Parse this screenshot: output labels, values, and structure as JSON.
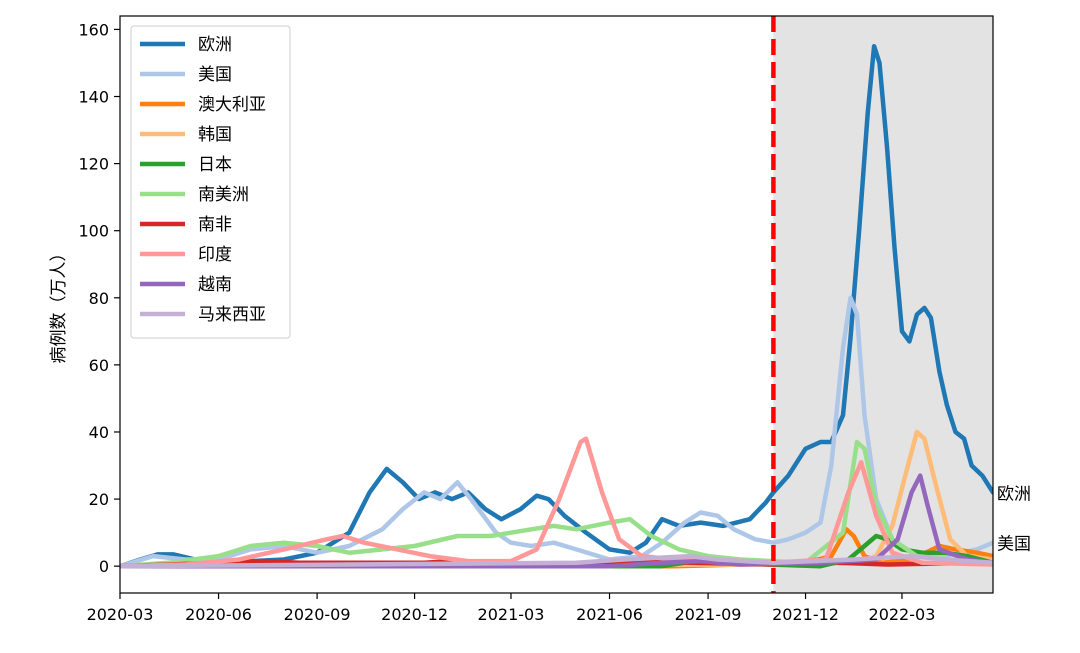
{
  "chart_data": {
    "type": "line",
    "title": "",
    "xlabel": "",
    "ylabel": "病例数（万人）",
    "ylim": [
      -8,
      164
    ],
    "xlim": [
      "2020-03-01",
      "2022-05-25"
    ],
    "y_ticks": [
      0,
      20,
      40,
      60,
      80,
      100,
      120,
      140,
      160
    ],
    "x_ticks": [
      {
        "date": "2020-03-01",
        "label": "2020-03"
      },
      {
        "date": "2020-06-01",
        "label": "2020-06"
      },
      {
        "date": "2020-09-01",
        "label": "2020-09"
      },
      {
        "date": "2020-12-01",
        "label": "2020-12"
      },
      {
        "date": "2021-03-01",
        "label": "2021-03"
      },
      {
        "date": "2021-06-01",
        "label": "2021-06"
      },
      {
        "date": "2021-09-01",
        "label": "2021-09"
      },
      {
        "date": "2021-12-01",
        "label": "2021-12"
      },
      {
        "date": "2022-03-01",
        "label": "2022-03"
      }
    ],
    "grid": false,
    "legend_position": "top-left",
    "vertical_marker": {
      "date": "2021-11-01",
      "color": "#ff0000",
      "style": "dashed"
    },
    "shaded_region": {
      "start": "2021-11-01",
      "end": "2022-05-25",
      "color": "#e3e3e3"
    },
    "end_labels": [
      {
        "series": "欧洲",
        "text": "欧洲",
        "y": 22
      },
      {
        "series": "美国",
        "text": "美国",
        "y": 7
      }
    ],
    "series": [
      {
        "name": "欧洲",
        "color": "#1f77b4",
        "points": [
          [
            "2020-03-01",
            0
          ],
          [
            "2020-03-20",
            2
          ],
          [
            "2020-04-05",
            3.5
          ],
          [
            "2020-04-20",
            3.5
          ],
          [
            "2020-05-10",
            2
          ],
          [
            "2020-06-01",
            1.5
          ],
          [
            "2020-07-01",
            1.5
          ],
          [
            "2020-08-01",
            2
          ],
          [
            "2020-09-01",
            4
          ],
          [
            "2020-10-01",
            10
          ],
          [
            "2020-10-20",
            22
          ],
          [
            "2020-11-05",
            29
          ],
          [
            "2020-11-20",
            25
          ],
          [
            "2020-12-05",
            20
          ],
          [
            "2020-12-20",
            22
          ],
          [
            "2021-01-05",
            20
          ],
          [
            "2021-01-20",
            22
          ],
          [
            "2021-02-05",
            17
          ],
          [
            "2021-02-20",
            14
          ],
          [
            "2021-03-10",
            17
          ],
          [
            "2021-03-25",
            21
          ],
          [
            "2021-04-05",
            20
          ],
          [
            "2021-04-20",
            15
          ],
          [
            "2021-05-10",
            10
          ],
          [
            "2021-06-01",
            5
          ],
          [
            "2021-06-20",
            4
          ],
          [
            "2021-07-05",
            7
          ],
          [
            "2021-07-20",
            14
          ],
          [
            "2021-08-05",
            12
          ],
          [
            "2021-08-25",
            13
          ],
          [
            "2021-09-15",
            12
          ],
          [
            "2021-10-10",
            14
          ],
          [
            "2021-10-25",
            19
          ],
          [
            "2021-11-01",
            22
          ],
          [
            "2021-11-15",
            27
          ],
          [
            "2021-12-01",
            35
          ],
          [
            "2021-12-15",
            37
          ],
          [
            "2021-12-25",
            37
          ],
          [
            "2022-01-05",
            45
          ],
          [
            "2022-01-12",
            68
          ],
          [
            "2022-01-20",
            100
          ],
          [
            "2022-01-28",
            135
          ],
          [
            "2022-02-03",
            155
          ],
          [
            "2022-02-08",
            150
          ],
          [
            "2022-02-15",
            125
          ],
          [
            "2022-02-22",
            95
          ],
          [
            "2022-03-01",
            70
          ],
          [
            "2022-03-08",
            67
          ],
          [
            "2022-03-15",
            75
          ],
          [
            "2022-03-22",
            77
          ],
          [
            "2022-03-28",
            74
          ],
          [
            "2022-04-05",
            58
          ],
          [
            "2022-04-12",
            48
          ],
          [
            "2022-04-20",
            40
          ],
          [
            "2022-04-28",
            38
          ],
          [
            "2022-05-05",
            30
          ],
          [
            "2022-05-15",
            27
          ],
          [
            "2022-05-25",
            22
          ]
        ]
      },
      {
        "name": "美国",
        "color": "#aec7e8",
        "points": [
          [
            "2020-03-01",
            0
          ],
          [
            "2020-04-01",
            3
          ],
          [
            "2020-05-01",
            2
          ],
          [
            "2020-06-01",
            2
          ],
          [
            "2020-07-01",
            5
          ],
          [
            "2020-08-01",
            6
          ],
          [
            "2020-09-01",
            4
          ],
          [
            "2020-10-01",
            6
          ],
          [
            "2020-11-01",
            11
          ],
          [
            "2020-11-20",
            17
          ],
          [
            "2020-12-10",
            22
          ],
          [
            "2020-12-25",
            20
          ],
          [
            "2021-01-10",
            25
          ],
          [
            "2021-01-25",
            19
          ],
          [
            "2021-02-15",
            10
          ],
          [
            "2021-03-01",
            7
          ],
          [
            "2021-03-20",
            6
          ],
          [
            "2021-04-10",
            7
          ],
          [
            "2021-05-01",
            5
          ],
          [
            "2021-06-01",
            2
          ],
          [
            "2021-07-01",
            3
          ],
          [
            "2021-07-20",
            7
          ],
          [
            "2021-08-10",
            13
          ],
          [
            "2021-08-25",
            16
          ],
          [
            "2021-09-10",
            15
          ],
          [
            "2021-09-25",
            11
          ],
          [
            "2021-10-15",
            8
          ],
          [
            "2021-11-01",
            7
          ],
          [
            "2021-11-15",
            8
          ],
          [
            "2021-12-01",
            10
          ],
          [
            "2021-12-15",
            13
          ],
          [
            "2021-12-25",
            30
          ],
          [
            "2022-01-05",
            65
          ],
          [
            "2022-01-12",
            80
          ],
          [
            "2022-01-18",
            75
          ],
          [
            "2022-01-25",
            45
          ],
          [
            "2022-02-05",
            20
          ],
          [
            "2022-02-20",
            8
          ],
          [
            "2022-03-10",
            4
          ],
          [
            "2022-04-10",
            3
          ],
          [
            "2022-05-10",
            5
          ],
          [
            "2022-05-25",
            7
          ]
        ]
      },
      {
        "name": "澳大利亚",
        "color": "#ff7f0e",
        "points": [
          [
            "2020-03-01",
            0
          ],
          [
            "2021-08-01",
            0
          ],
          [
            "2021-10-01",
            0.5
          ],
          [
            "2021-12-01",
            1
          ],
          [
            "2021-12-25",
            3
          ],
          [
            "2022-01-08",
            11
          ],
          [
            "2022-01-15",
            9
          ],
          [
            "2022-01-25",
            3
          ],
          [
            "2022-02-10",
            1
          ],
          [
            "2022-03-10",
            2
          ],
          [
            "2022-04-05",
            6
          ],
          [
            "2022-04-20",
            5
          ],
          [
            "2022-05-10",
            4
          ],
          [
            "2022-05-25",
            3
          ]
        ]
      },
      {
        "name": "韩国",
        "color": "#ffbb78",
        "points": [
          [
            "2020-03-01",
            0
          ],
          [
            "2021-12-01",
            0.5
          ],
          [
            "2022-01-15",
            1
          ],
          [
            "2022-02-05",
            3
          ],
          [
            "2022-02-20",
            12
          ],
          [
            "2022-03-05",
            28
          ],
          [
            "2022-03-15",
            40
          ],
          [
            "2022-03-22",
            38
          ],
          [
            "2022-04-01",
            25
          ],
          [
            "2022-04-15",
            8
          ],
          [
            "2022-05-01",
            3
          ],
          [
            "2022-05-25",
            2
          ]
        ]
      },
      {
        "name": "日本",
        "color": "#2ca02c",
        "points": [
          [
            "2020-03-01",
            0
          ],
          [
            "2021-07-20",
            0
          ],
          [
            "2021-08-20",
            1.5
          ],
          [
            "2021-09-10",
            1
          ],
          [
            "2021-12-15",
            0
          ],
          [
            "2022-01-10",
            2
          ],
          [
            "2022-01-25",
            6
          ],
          [
            "2022-02-05",
            9
          ],
          [
            "2022-02-15",
            8
          ],
          [
            "2022-03-01",
            5
          ],
          [
            "2022-03-20",
            4
          ],
          [
            "2022-04-10",
            4
          ],
          [
            "2022-05-01",
            3
          ],
          [
            "2022-05-25",
            1
          ]
        ]
      },
      {
        "name": "南美洲",
        "color": "#98df8a",
        "points": [
          [
            "2020-03-01",
            0
          ],
          [
            "2020-04-15",
            1
          ],
          [
            "2020-06-01",
            3
          ],
          [
            "2020-07-01",
            6
          ],
          [
            "2020-08-01",
            7
          ],
          [
            "2020-09-01",
            6
          ],
          [
            "2020-10-01",
            4
          ],
          [
            "2020-11-01",
            5
          ],
          [
            "2020-12-01",
            6
          ],
          [
            "2021-01-10",
            9
          ],
          [
            "2021-02-10",
            9
          ],
          [
            "2021-03-20",
            11
          ],
          [
            "2021-04-10",
            12
          ],
          [
            "2021-05-01",
            11
          ],
          [
            "2021-06-01",
            13
          ],
          [
            "2021-06-20",
            14
          ],
          [
            "2021-07-10",
            9
          ],
          [
            "2021-08-05",
            5
          ],
          [
            "2021-09-01",
            3
          ],
          [
            "2021-10-01",
            2
          ],
          [
            "2021-12-01",
            1
          ],
          [
            "2022-01-05",
            10
          ],
          [
            "2022-01-18",
            37
          ],
          [
            "2022-01-25",
            35
          ],
          [
            "2022-02-05",
            18
          ],
          [
            "2022-02-20",
            8
          ],
          [
            "2022-03-15",
            3
          ],
          [
            "2022-04-15",
            2
          ],
          [
            "2022-05-25",
            1
          ]
        ]
      },
      {
        "name": "南非",
        "color": "#d62728",
        "points": [
          [
            "2020-03-01",
            0
          ],
          [
            "2020-06-01",
            1
          ],
          [
            "2020-07-15",
            1.5
          ],
          [
            "2020-08-15",
            1
          ],
          [
            "2020-12-10",
            1
          ],
          [
            "2021-01-05",
            1.5
          ],
          [
            "2021-02-15",
            0.5
          ],
          [
            "2021-06-01",
            1
          ],
          [
            "2021-07-10",
            2
          ],
          [
            "2021-08-15",
            1
          ],
          [
            "2021-11-01",
            0.5
          ],
          [
            "2021-12-15",
            2
          ],
          [
            "2022-01-01",
            1
          ],
          [
            "2022-02-15",
            0.5
          ],
          [
            "2022-05-10",
            1
          ],
          [
            "2022-05-25",
            0.5
          ]
        ]
      },
      {
        "name": "印度",
        "color": "#ff9896",
        "points": [
          [
            "2020-03-01",
            0
          ],
          [
            "2020-05-01",
            0.5
          ],
          [
            "2020-06-20",
            2
          ],
          [
            "2020-08-01",
            5
          ],
          [
            "2020-09-10",
            8
          ],
          [
            "2020-09-25",
            9
          ],
          [
            "2020-10-15",
            7
          ],
          [
            "2020-11-15",
            5
          ],
          [
            "2020-12-15",
            3
          ],
          [
            "2021-01-20",
            1.5
          ],
          [
            "2021-03-01",
            1.5
          ],
          [
            "2021-03-25",
            5
          ],
          [
            "2021-04-15",
            20
          ],
          [
            "2021-05-05",
            37
          ],
          [
            "2021-05-10",
            38
          ],
          [
            "2021-05-25",
            22
          ],
          [
            "2021-06-10",
            8
          ],
          [
            "2021-07-01",
            3
          ],
          [
            "2021-08-01",
            2
          ],
          [
            "2021-09-10",
            2
          ],
          [
            "2021-11-01",
            1
          ],
          [
            "2021-12-20",
            2
          ],
          [
            "2022-01-10",
            22
          ],
          [
            "2022-01-22",
            31
          ],
          [
            "2022-02-05",
            15
          ],
          [
            "2022-02-20",
            4
          ],
          [
            "2022-03-20",
            1
          ],
          [
            "2022-05-25",
            0.5
          ]
        ]
      },
      {
        "name": "越南",
        "color": "#9467bd",
        "points": [
          [
            "2020-03-01",
            0
          ],
          [
            "2021-06-01",
            0
          ],
          [
            "2021-07-20",
            1
          ],
          [
            "2021-08-25",
            1.5
          ],
          [
            "2021-10-01",
            0.5
          ],
          [
            "2021-12-15",
            1
          ],
          [
            "2022-02-05",
            2
          ],
          [
            "2022-02-25",
            8
          ],
          [
            "2022-03-10",
            22
          ],
          [
            "2022-03-18",
            27
          ],
          [
            "2022-03-25",
            18
          ],
          [
            "2022-04-05",
            5
          ],
          [
            "2022-05-01",
            2
          ],
          [
            "2022-05-25",
            1
          ]
        ]
      },
      {
        "name": "马来西亚",
        "color": "#c5b0d5",
        "points": [
          [
            "2020-03-01",
            0
          ],
          [
            "2021-05-01",
            1
          ],
          [
            "2021-06-15",
            2
          ],
          [
            "2021-08-15",
            3
          ],
          [
            "2021-09-10",
            2
          ],
          [
            "2021-11-01",
            1
          ],
          [
            "2022-01-15",
            2
          ],
          [
            "2022-03-10",
            3
          ],
          [
            "2022-04-10",
            2
          ],
          [
            "2022-05-25",
            1
          ]
        ]
      }
    ]
  }
}
